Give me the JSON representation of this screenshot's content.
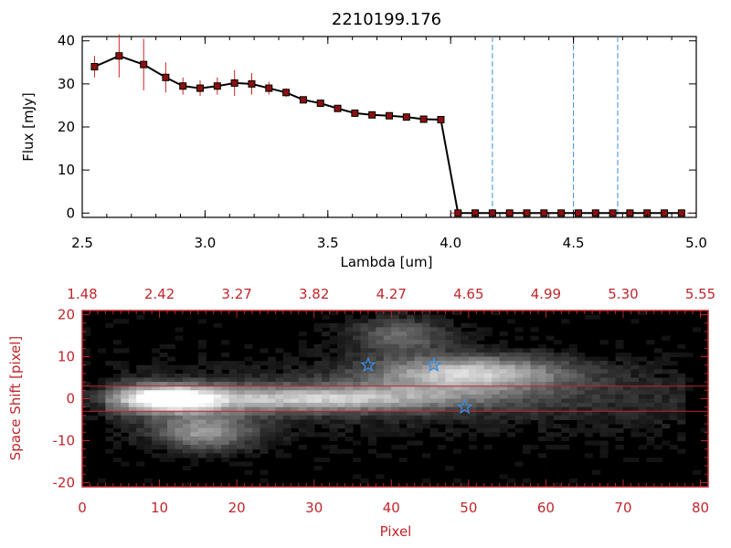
{
  "chart_data": [
    {
      "type": "line",
      "title": "2210199.176",
      "xlabel": "Lambda [um]",
      "ylabel": "Flux [mJy]",
      "xlim": [
        2.5,
        5.0
      ],
      "ylim": [
        -1,
        41
      ],
      "xticks": [
        "2.5",
        "3.0",
        "3.5",
        "4.0",
        "4.5",
        "5.0"
      ],
      "yticks": [
        "0",
        "10",
        "20",
        "30",
        "40"
      ],
      "series": [
        {
          "x": [
            2.55,
            2.65,
            2.75,
            2.84,
            2.91,
            2.98,
            3.05,
            3.12,
            3.19,
            3.26,
            3.33,
            3.4,
            3.47,
            3.54,
            3.61,
            3.68,
            3.75,
            3.82,
            3.89,
            3.96,
            4.03,
            4.1,
            4.17,
            4.24,
            4.31,
            4.38,
            4.45,
            4.52,
            4.59,
            4.66,
            4.73,
            4.8,
            4.87,
            4.94
          ],
          "y": [
            34,
            36.5,
            34.5,
            31.5,
            29.5,
            29,
            29.5,
            30.2,
            30,
            29,
            28,
            26.3,
            25.5,
            24.3,
            23.2,
            22.8,
            22.6,
            22.3,
            21.8,
            21.7,
            0,
            0,
            0,
            0,
            0,
            0,
            0,
            0,
            0,
            0,
            0,
            0,
            0,
            0
          ],
          "yerr": [
            2.5,
            5,
            6,
            3.5,
            2,
            1.8,
            2,
            3,
            2.5,
            1.5,
            1,
            0.8,
            0.5,
            0.5,
            0.5,
            0.5,
            0.5,
            0.5,
            0.5,
            0.5,
            0,
            0,
            0,
            0,
            0,
            0,
            0,
            0,
            0,
            0,
            0,
            0,
            0,
            0
          ]
        }
      ],
      "vlines": [
        4.17,
        4.5,
        4.68
      ]
    },
    {
      "type": "heatmap",
      "xlabel": "Pixel",
      "ylabel": "Space Shift [pixel]",
      "xlim": [
        0,
        81
      ],
      "ylim": [
        -21,
        21
      ],
      "xticks": [
        "0",
        "10",
        "20",
        "30",
        "40",
        "50",
        "60",
        "70",
        "80"
      ],
      "yticks": [
        "-20",
        "-10",
        "0",
        "10",
        "20"
      ],
      "top_axis_labels": [
        "1.48",
        "2.42",
        "3.27",
        "3.82",
        "4.27",
        "4.65",
        "4.99",
        "5.30",
        "5.55"
      ],
      "hlines": [
        -3,
        3
      ],
      "stars_pixel": [
        [
          37,
          8
        ],
        [
          45.5,
          8
        ],
        [
          49.5,
          -2
        ]
      ],
      "bright_features": [
        {
          "x": 11,
          "y": 0,
          "peak": 240
        },
        {
          "x": 16,
          "y": -8,
          "peak": 140
        },
        {
          "x": 30,
          "y": 0,
          "peak": 170
        },
        {
          "x": 50,
          "y": 6,
          "peak": 190
        },
        {
          "x": 41,
          "y": 15,
          "peak": 100
        }
      ]
    }
  ],
  "colors": {
    "red_axis": "#c0262b",
    "vline_blue": "#3a90d9",
    "star_blue": "#3a8ee0",
    "marker_fill": "#8b1010",
    "errorbar": "#d62020"
  }
}
